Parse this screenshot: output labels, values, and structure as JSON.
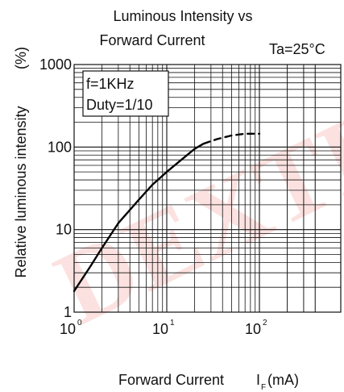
{
  "chart_data": {
    "type": "line",
    "title_line1": "Luminous Intensity vs",
    "title_line2": "Forward Current",
    "condition": "Ta=25°C",
    "ylabel": "Relative luminous intensity",
    "yunit": "(%)",
    "xlabel": "Forward Current",
    "xunit_symbol": "I",
    "xunit_sub": "F",
    "xunit_rest": "(mA)",
    "annotations": [
      "f=1KHz",
      "Duty=1/10"
    ],
    "x_scale": "log",
    "y_scale": "log",
    "xlim": [
      1,
      400
    ],
    "ylim": [
      1,
      1000
    ],
    "grid": true,
    "y_ticks": [
      "1",
      "10",
      "100",
      "1000"
    ],
    "x_ticks": [
      {
        "base": "10",
        "exp": "0",
        "value": 1
      },
      {
        "base": "10",
        "exp": "1",
        "value": 10
      },
      {
        "base": "10",
        "exp": "2",
        "value": 100
      }
    ],
    "watermark": "DEXTIAA",
    "series": [
      {
        "style": "solid",
        "x": [
          1,
          1.5,
          2,
          3,
          5,
          7,
          10,
          15,
          20,
          25
        ],
        "y": [
          1.8,
          3.6,
          6,
          12,
          23,
          35,
          50,
          73,
          95,
          110
        ]
      },
      {
        "style": "dashed",
        "x": [
          25,
          35,
          50,
          70,
          100
        ],
        "y": [
          110,
          125,
          138,
          145,
          145
        ]
      }
    ]
  }
}
